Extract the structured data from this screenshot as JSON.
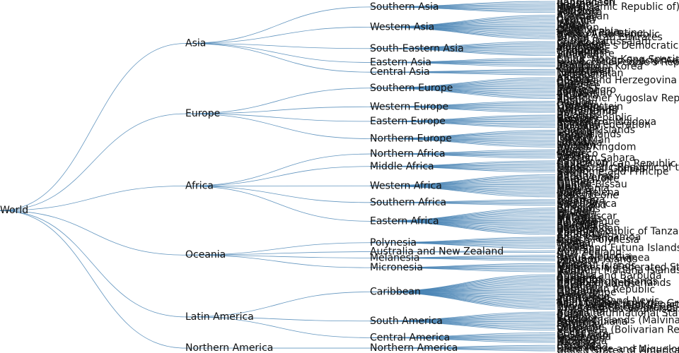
{
  "tree": {
    "name": "World",
    "children": [
      {
        "name": "Asia",
        "children": [
          {
            "name": "Southern Asia",
            "children": [
              "Afghanistan",
              "Bangladesh",
              "Bhutan",
              "India",
              "Iran (Islamic Republic of)",
              "Maldives",
              "Nepal",
              "Pakistan",
              "Sri Lanka"
            ]
          },
          {
            "name": "Western Asia",
            "children": [
              "Armenia",
              "Azerbaijan",
              "Bahrain",
              "Cyprus",
              "Georgia",
              "Iraq",
              "Israel",
              "Jordan",
              "Kuwait",
              "Lebanon",
              "Oman",
              "Qatar",
              "Saudi Arabia",
              "State of Palestine",
              "Syrian Arab Republic",
              "Turkey",
              "United Arab Emirates",
              "Yemen"
            ]
          },
          {
            "name": "South-Eastern Asia",
            "children": [
              "Brunei Darussalam",
              "Cambodia",
              "Indonesia",
              "Lao People's Democratic Republic",
              "Malaysia",
              "Myanmar",
              "Philippines",
              "Singapore",
              "Thailand",
              "Timor-Leste",
              "Viet Nam"
            ]
          },
          {
            "name": "Eastern Asia",
            "children": [
              "China",
              "China, Hong Kong Special Administrative Region",
              "China, Macao Special Administrative Region",
              "Democratic People's Republic of Korea",
              "Japan",
              "Mongolia",
              "Republic of Korea"
            ]
          },
          {
            "name": "Central Asia",
            "children": [
              "Kazakhstan",
              "Kyrgyzstan",
              "Tajikistan",
              "Turkmenistan",
              "Uzbekistan"
            ]
          }
        ]
      },
      {
        "name": "Europe",
        "children": [
          {
            "name": "Southern Europe",
            "children": [
              "Albania",
              "Andorra",
              "Bosnia and Herzegovina",
              "Croatia",
              "Gibraltar",
              "Greece",
              "Holy See",
              "Italy",
              "Malta",
              "Montenegro",
              "Portugal",
              "San Marino",
              "Serbia",
              "Slovenia",
              "Spain",
              "The former Yugoslav Republic of Macedonia"
            ]
          },
          {
            "name": "Western Europe",
            "children": [
              "Austria",
              "Belgium",
              "France",
              "Germany",
              "Liechtenstein",
              "Luxembourg",
              "Monaco",
              "Netherlands",
              "Switzerland"
            ]
          },
          {
            "name": "Eastern Europe",
            "children": [
              "Belarus",
              "Bulgaria",
              "Czech Republic",
              "Hungary",
              "Poland",
              "Republic of Moldova",
              "Romania",
              "Russian Federation",
              "Slovakia",
              "Ukraine"
            ]
          },
          {
            "name": "Northern Europe",
            "children": [
              "Channel Islands",
              "Denmark",
              "Estonia",
              "Faroe Islands",
              "Finland",
              "Iceland",
              "Ireland",
              "Isle of Man",
              "Latvia",
              "Lithuania",
              "Norway",
              "Sweden",
              "United Kingdom"
            ]
          }
        ]
      },
      {
        "name": "Africa",
        "children": [
          {
            "name": "Northern Africa",
            "children": [
              "Algeria",
              "Egypt",
              "Libya",
              "Morocco",
              "Sudan",
              "Tunisia",
              "Western Sahara"
            ]
          },
          {
            "name": "Middle Africa",
            "children": [
              "Angola",
              "Cameroon",
              "Central African Republic",
              "Chad",
              "Congo",
              "Democratic Republic of the Congo",
              "Equatorial Guinea",
              "Gabon",
              "Sao Tome and Principe"
            ]
          },
          {
            "name": "Western Africa",
            "children": [
              "Benin",
              "Burkina Faso",
              "Cabo Verde",
              "Côte d'Ivoire",
              "Gambia",
              "Ghana",
              "Guinea",
              "Guinea-Bissau",
              "Liberia",
              "Mali",
              "Mauritania",
              "Niger",
              "Nigeria",
              "Saint Helena",
              "Senegal",
              "Sierra Leone",
              "Togo"
            ]
          },
          {
            "name": "Southern Africa",
            "children": [
              "Botswana",
              "Lesotho",
              "Namibia",
              "South Africa",
              "Swaziland"
            ]
          },
          {
            "name": "Eastern Africa",
            "children": [
              "Burundi",
              "Comoros",
              "Djibouti",
              "Eritrea",
              "Ethiopia",
              "Kenya",
              "Madagascar",
              "Malawi",
              "Mauritius",
              "Mayotte",
              "Mozambique",
              "Réunion",
              "Rwanda",
              "Seychelles",
              "Somalia",
              "South Sudan",
              "Uganda",
              "United Republic of Tanzania",
              "Zambia",
              "Zimbabwe"
            ]
          }
        ]
      },
      {
        "name": "Oceania",
        "children": [
          {
            "name": "Polynesia",
            "children": [
              "American Samoa",
              "Cook Islands",
              "French Polynesia",
              "Niue",
              "Samoa",
              "Tokelau",
              "Tonga",
              "Tuvalu",
              "Wallis and Futuna Islands"
            ]
          },
          {
            "name": "Australia and New Zealand",
            "children": [
              "Australia",
              "New Zealand"
            ]
          },
          {
            "name": "Melanesia",
            "children": [
              "Fiji",
              "New Caledonia",
              "Papua New Guinea",
              "Solomon Islands",
              "Vanuatu"
            ]
          },
          {
            "name": "Micronesia",
            "children": [
              "Guam",
              "Kiribati",
              "Marshall Islands",
              "Micronesia (Federated States of)",
              "Nauru",
              "Northern Mariana Islands",
              "Palau"
            ]
          }
        ]
      },
      {
        "name": "Latin America",
        "children": [
          {
            "name": "Caribbean",
            "children": [
              "Anguilla",
              "Antigua and Barbuda",
              "Aruba",
              "Bahamas",
              "Barbados",
              "British Virgin Islands",
              "Caribbean Netherlands",
              "Cayman Islands",
              "Cuba",
              "Curaçao",
              "Dominica",
              "Dominican Republic",
              "Grenada",
              "Guadeloupe",
              "Haiti",
              "Jamaica",
              "Martinique",
              "Montserrat",
              "Puerto Rico",
              "Saint Kitts and Nevis",
              "Saint Lucia",
              "Saint Vincent and the Grenadines",
              "Sint Maarten (Dutch part)",
              "Trinidad and Tobago",
              "Turks and Caicos Islands",
              "United States Virgin Islands"
            ]
          },
          {
            "name": "South America",
            "children": [
              "Argentina",
              "Bolivia (Plurinational State of)",
              "Brazil",
              "Chile",
              "Colombia",
              "Ecuador",
              "Falkland Islands (Malvinas)",
              "French Guiana",
              "Guyana",
              "Paraguay",
              "Peru",
              "Suriname",
              "Uruguay",
              "Venezuela (Bolivarian Republic of)"
            ]
          },
          {
            "name": "Central America",
            "children": [
              "Belize",
              "Costa Rica",
              "El Salvador",
              "Guatemala",
              "Honduras",
              "Mexico",
              "Nicaragua",
              "Panama"
            ]
          }
        ]
      },
      {
        "name": "Northern America",
        "children": [
          {
            "name": "Northern America",
            "children": [
              "Bermuda",
              "Canada",
              "Greenland",
              "Saint Pierre and Miquelon",
              "United States of America"
            ]
          }
        ]
      }
    ]
  }
}
